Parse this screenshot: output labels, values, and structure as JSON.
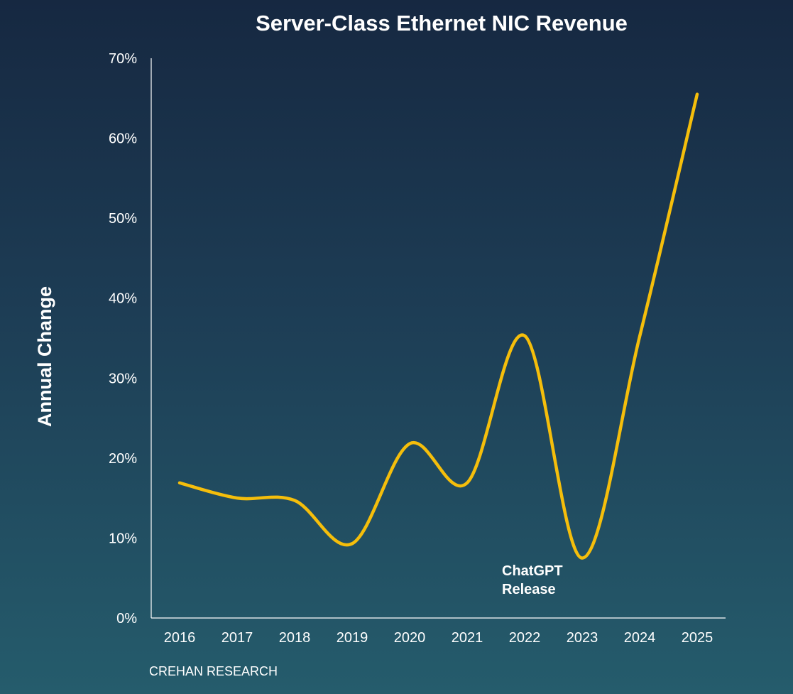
{
  "chart_data": {
    "type": "line",
    "title": "Server-Class Ethernet NIC Revenue",
    "xlabel": "",
    "ylabel": "Annual Change",
    "categories": [
      "2016",
      "2017",
      "2018",
      "2019",
      "2020",
      "2021",
      "2022",
      "2023",
      "2024",
      "2025"
    ],
    "values": [
      16.9,
      15.0,
      14.7,
      9.3,
      21.8,
      16.9,
      35.3,
      7.5,
      35.2,
      65.5
    ],
    "ylim": [
      0,
      70
    ],
    "yticks": [
      "0%",
      "10%",
      "20%",
      "30%",
      "40%",
      "50%",
      "60%",
      "70%"
    ],
    "grid": false,
    "smooth": true,
    "line_color": "#f5be0b",
    "annotation": {
      "line1": "ChatGPT",
      "line2": "Release",
      "near": "2022"
    },
    "source": "CREHAN RESEARCH"
  }
}
